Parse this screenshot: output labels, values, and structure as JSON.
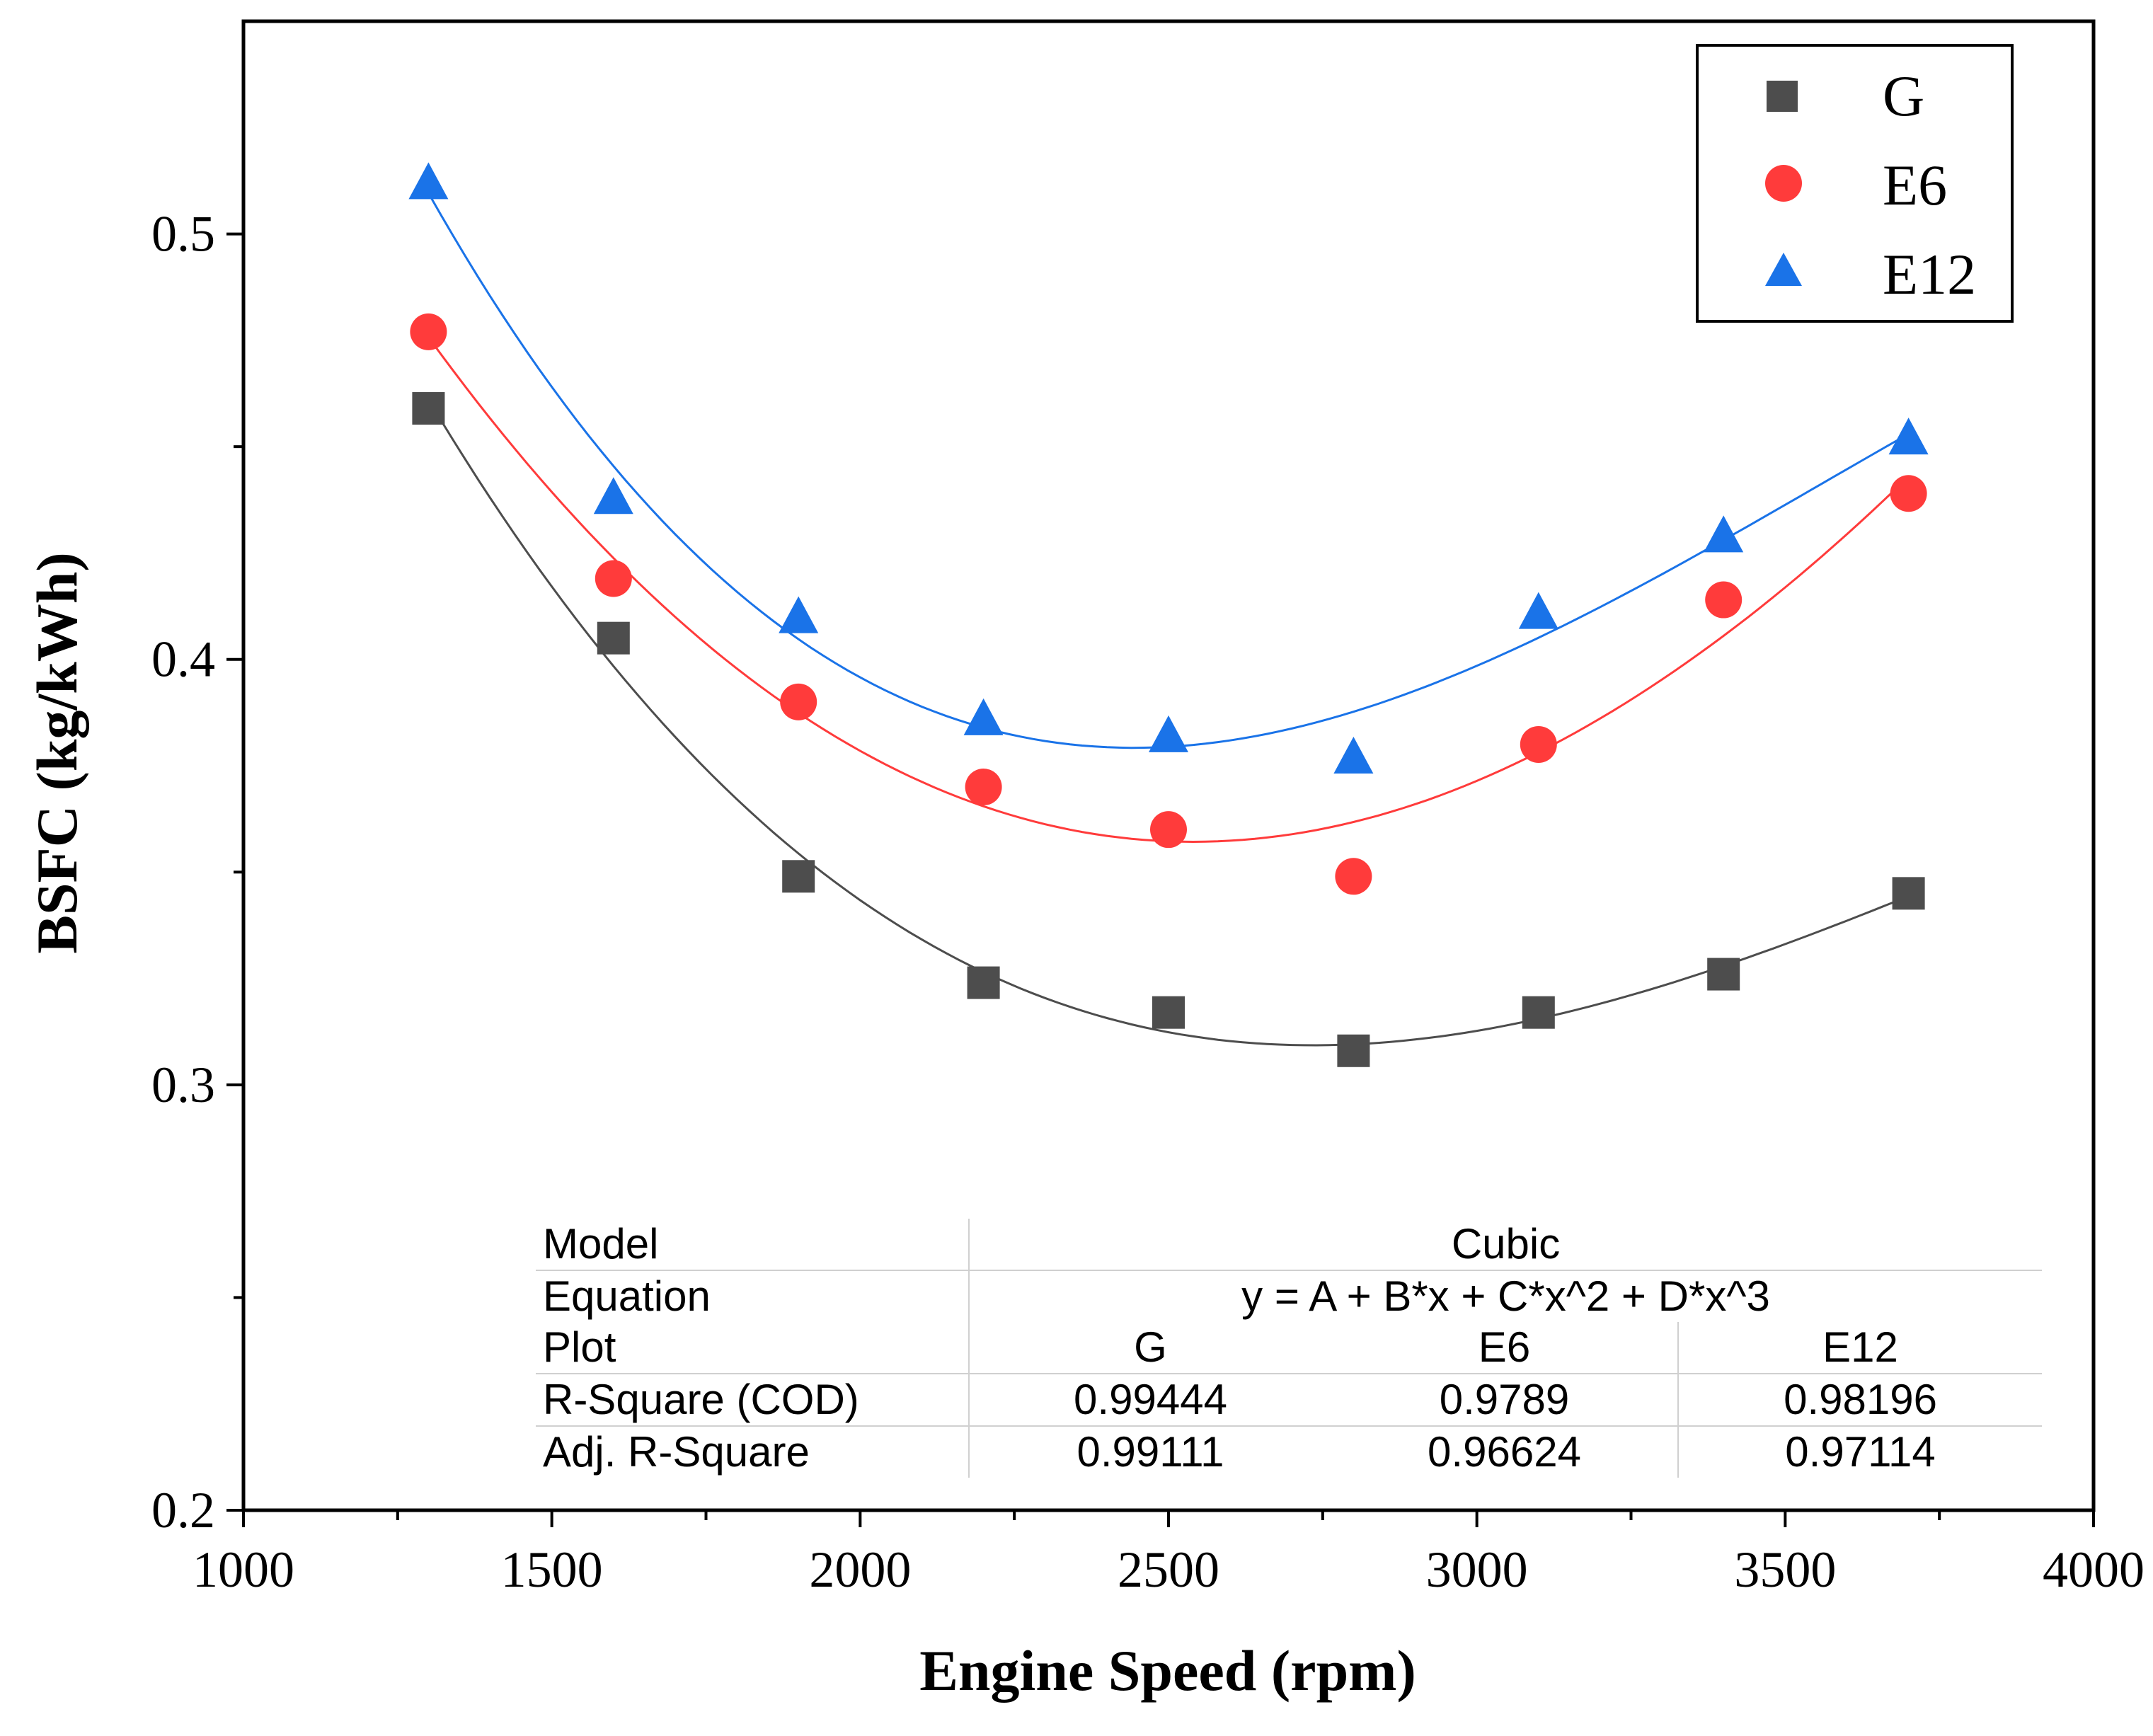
{
  "chart_data": {
    "type": "scatter",
    "xlabel": "Engine Speed (rpm)",
    "ylabel": "BSFC (kg/kWh)",
    "xlim": [
      1000,
      4000
    ],
    "ylim": [
      0.2,
      0.55
    ],
    "xticks": [
      1000,
      1500,
      2000,
      2500,
      3000,
      3500,
      4000
    ],
    "yticks": [
      0.2,
      0.3,
      0.4,
      0.5
    ],
    "ytick_labels": [
      "0.2",
      "0.3",
      "0.4",
      "0.5"
    ],
    "x": [
      1300,
      1600,
      1900,
      2200,
      2500,
      2800,
      3100,
      3400,
      3700
    ],
    "series": [
      {
        "name": "G",
        "marker": "square",
        "color": "#4d4d4d",
        "line_color": "#4d4d4d",
        "values": [
          0.459,
          0.405,
          0.349,
          0.324,
          0.317,
          0.308,
          0.317,
          0.326,
          0.345
        ]
      },
      {
        "name": "E6",
        "marker": "circle",
        "color": "#ff3b3b",
        "line_color": "#ff3b3b",
        "values": [
          0.477,
          0.419,
          0.39,
          0.37,
          0.36,
          0.349,
          0.38,
          0.414,
          0.439
        ]
      },
      {
        "name": "E12",
        "marker": "triangle",
        "color": "#1a73e8",
        "line_color": "#1a73e8",
        "values": [
          0.512,
          0.438,
          0.41,
          0.386,
          0.382,
          0.377,
          0.411,
          0.429,
          0.452
        ]
      }
    ],
    "legend": {
      "position": "top-right",
      "entries": [
        "G",
        "E6",
        "E12"
      ]
    },
    "fit_table": {
      "position": "bottom-right",
      "rows": [
        {
          "label": "Model",
          "value": "Cubic"
        },
        {
          "label": "Equation",
          "value": "y = A + B*x + C*x^2 + D*x^3"
        },
        {
          "label": "Plot",
          "cells": [
            "G",
            "E6",
            "E12"
          ]
        },
        {
          "label": "R-Square (COD)",
          "cells": [
            "0.99444",
            "0.9789",
            "0.98196"
          ]
        },
        {
          "label": "Adj. R-Square",
          "cells": [
            "0.99111",
            "0.96624",
            "0.97114"
          ]
        }
      ]
    }
  }
}
